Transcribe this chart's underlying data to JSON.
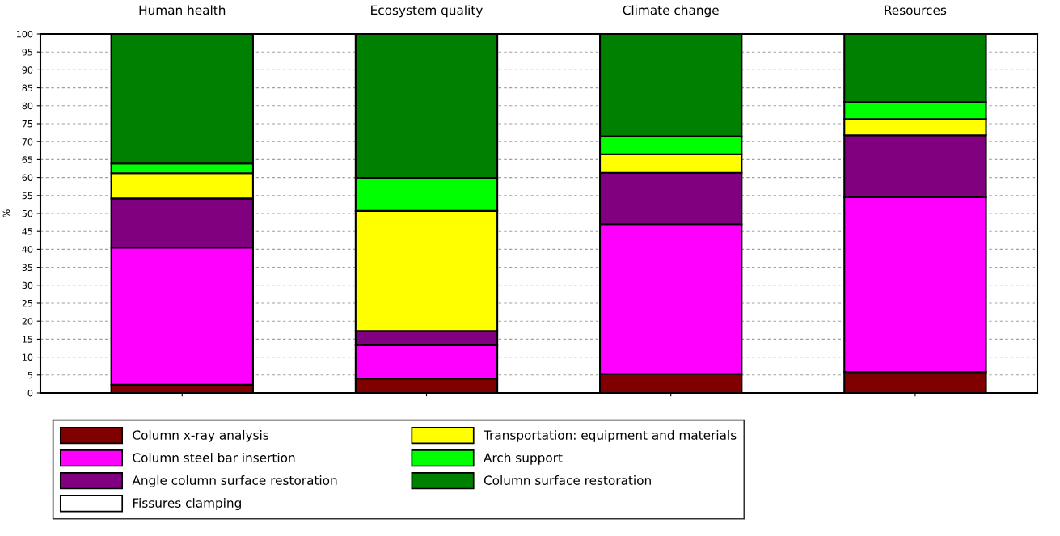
{
  "chart_data": {
    "type": "bar",
    "stacked": true,
    "ylabel": "%",
    "categories": [
      "Human health",
      "Ecosystem quality",
      "Climate change",
      "Resources"
    ],
    "series": [
      {
        "name": "Column x-ray analysis",
        "color": "#800000",
        "values": [
          2.3,
          4.0,
          5.3,
          5.8
        ]
      },
      {
        "name": "Column steel bar insertion",
        "color": "#ff00ff",
        "values": [
          38.2,
          9.3,
          41.7,
          48.7
        ]
      },
      {
        "name": "Angle column surface restoration",
        "color": "#800080",
        "values": [
          13.7,
          4.0,
          14.3,
          17.3
        ]
      },
      {
        "name": "Fissures clamping",
        "color": "#ffffff",
        "values": [
          null,
          null,
          null,
          null
        ]
      },
      {
        "name": "Transportation: equipment and materials",
        "color": "#ffff00",
        "values": [
          7.0,
          33.4,
          5.2,
          4.5
        ]
      },
      {
        "name": "Arch support",
        "color": "#00ff00",
        "values": [
          2.7,
          9.2,
          5.0,
          4.7
        ]
      },
      {
        "name": "Column surface restoration",
        "color": "#008000",
        "values": [
          36.1,
          40.1,
          28.5,
          19.0
        ]
      }
    ],
    "ylim": [
      0,
      100
    ],
    "yticks": [
      0,
      5,
      10,
      15,
      20,
      25,
      30,
      35,
      40,
      45,
      50,
      55,
      60,
      65,
      70,
      75,
      80,
      85,
      90,
      95,
      100
    ],
    "grid": "y",
    "legend": "bottom"
  }
}
